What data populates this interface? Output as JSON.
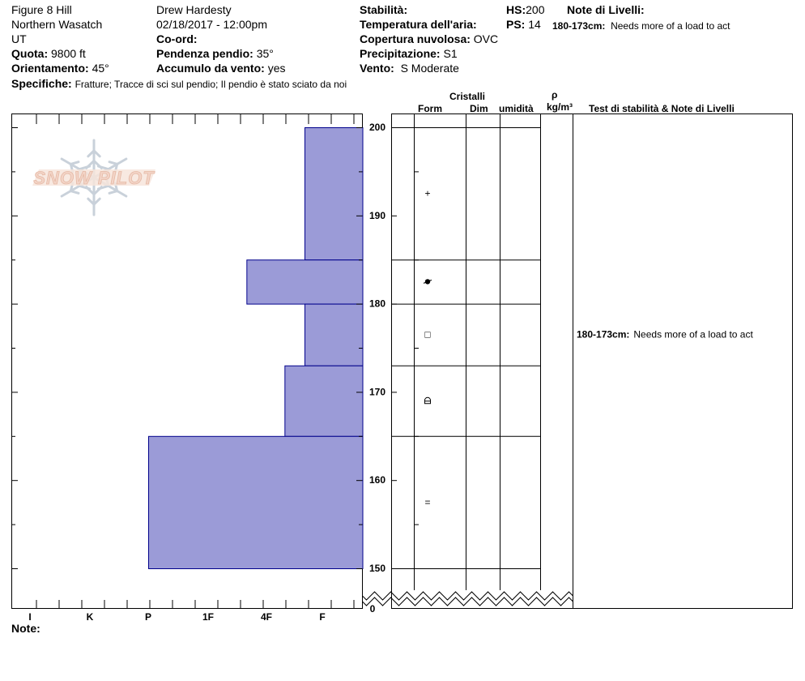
{
  "header": {
    "location": "Figure 8 Hill",
    "range": "Northern Wasatch",
    "state": "UT",
    "elevation_label": "Quota:",
    "elevation_value": "9800 ft",
    "aspect_label": "Orientamento:",
    "aspect_value": "45°",
    "observer": "Drew Hardesty",
    "datetime": "02/18/2017 - 12:00pm",
    "coord_label": "Co-ord:",
    "slope_label": "Pendenza pendio:",
    "slope_value": "35°",
    "wind_loading_label": "Accumulo da vento:",
    "wind_loading_value": "yes",
    "stability_label": "Stabilità:",
    "air_temp_label": "Temperatura dell'aria:",
    "cloud_label": "Copertura nuvolosa:",
    "cloud_value": "OVC",
    "precip_label": "Precipitazione:",
    "precip_value": "S1",
    "wind_label": "Vento:",
    "wind_value": "S Moderate",
    "hs_label": "HS:",
    "hs_value": "200",
    "ps_label": "PS:",
    "ps_value": "14",
    "layer_notes_label": "Note di Livelli:",
    "layer_note_range": "180-173cm:",
    "layer_note_text": "Needs more of a load to act",
    "specifics_label": "Specifiche:",
    "specifics_value": "Fratture;  Tracce di sci sul pendio;  Il pendio è stato sciato da noi"
  },
  "logo": {
    "text": "SNOW PILOT"
  },
  "columns": {
    "crystals": "Cristalli",
    "form": "Form",
    "dim": "Dim",
    "moisture": "umidità",
    "rho": "ρ",
    "density_unit": "kg/m³",
    "stability_notes": "Test di stabilità & Note di Livelli"
  },
  "footer": {
    "notes_label": "Note:"
  },
  "colors": {
    "bar_fill": "#9b9bd7",
    "bar_stroke": "#00008b"
  },
  "chart_data": {
    "type": "bar",
    "orientation": "horizontal",
    "y_axis": {
      "min": 150,
      "max": 200,
      "ticks": [
        200,
        190,
        180,
        170,
        160,
        150
      ],
      "bottom_label": "0"
    },
    "x_categories": [
      "I",
      "K",
      "P",
      "1F",
      "4F",
      "F"
    ],
    "layers": [
      {
        "top": 200,
        "bottom": 185,
        "hardness": "F",
        "form": "+"
      },
      {
        "top": 185,
        "bottom": 180,
        "hardness": "4F+",
        "form": "grain-shape-rounding"
      },
      {
        "top": 180,
        "bottom": 173,
        "hardness": "F",
        "form": "□"
      },
      {
        "top": 173,
        "bottom": 165,
        "hardness": "F+",
        "form": "grain-shape-faceted-rounding"
      },
      {
        "top": 165,
        "bottom": 150,
        "hardness": "P",
        "form": "="
      }
    ],
    "stability_notes": [
      {
        "y": 176.5,
        "range": "180-173cm:",
        "text": "Needs more of a load to act"
      }
    ]
  }
}
